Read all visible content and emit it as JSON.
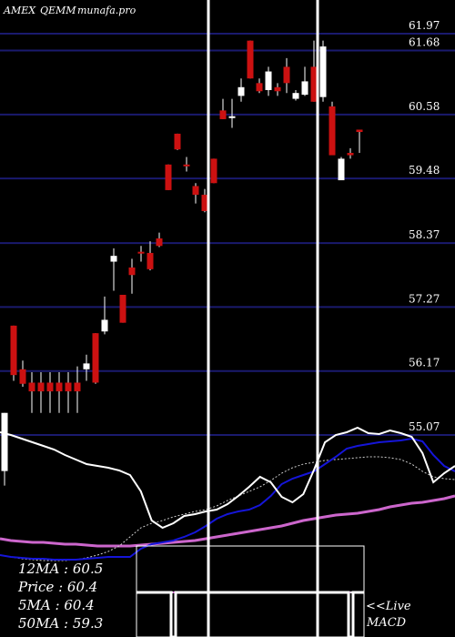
{
  "header": {
    "exchange": "AMEX",
    "symbol": "QEMM",
    "site": "munafa.pro"
  },
  "colors": {
    "background": "#000000",
    "grid": "#1a1a6e",
    "up_candle": "#ffffff",
    "down_candle": "#cc1111",
    "price_line": "#ffffff",
    "ma_fast": "#1515d8",
    "ma_slow": "#cc66cc",
    "ma_dotted": "#cccccc",
    "marker": "#ffffff"
  },
  "chart_data": {
    "type": "candlestick",
    "yticks": [
      61.97,
      61.68,
      60.58,
      59.48,
      58.37,
      57.27,
      56.17,
      55.07
    ],
    "candles": [
      {
        "o": 54.45,
        "h": 55.45,
        "l": 54.2,
        "c": 55.45
      },
      {
        "o": 56.95,
        "h": 56.95,
        "l": 56.0,
        "c": 56.1
      },
      {
        "o": 56.2,
        "h": 56.35,
        "l": 55.9,
        "c": 55.95
      },
      {
        "o": 55.97,
        "h": 56.15,
        "l": 55.45,
        "c": 55.82
      },
      {
        "o": 55.97,
        "h": 56.15,
        "l": 55.45,
        "c": 55.82
      },
      {
        "o": 55.97,
        "h": 56.15,
        "l": 55.45,
        "c": 55.82
      },
      {
        "o": 55.97,
        "h": 56.15,
        "l": 55.45,
        "c": 55.82
      },
      {
        "o": 55.97,
        "h": 56.15,
        "l": 55.45,
        "c": 55.82
      },
      {
        "o": 55.97,
        "h": 56.25,
        "l": 55.45,
        "c": 55.82
      },
      {
        "o": 56.2,
        "h": 56.45,
        "l": 56.0,
        "c": 56.3
      },
      {
        "o": 56.82,
        "h": 56.82,
        "l": 55.95,
        "c": 55.97
      },
      {
        "o": 56.85,
        "h": 57.45,
        "l": 56.8,
        "c": 57.05
      },
      {
        "o": 58.05,
        "h": 58.28,
        "l": 57.55,
        "c": 58.15
      },
      {
        "o": 57.48,
        "h": 57.48,
        "l": 57.0,
        "c": 57.0
      },
      {
        "o": 57.95,
        "h": 58.1,
        "l": 57.5,
        "c": 57.82
      },
      {
        "o": 58.22,
        "h": 58.32,
        "l": 58.05,
        "c": 58.2
      },
      {
        "o": 58.2,
        "h": 58.4,
        "l": 57.9,
        "c": 57.92
      },
      {
        "o": 58.45,
        "h": 58.55,
        "l": 58.3,
        "c": 58.32
      },
      {
        "o": 59.72,
        "h": 59.72,
        "l": 59.28,
        "c": 59.28
      },
      {
        "o": 60.25,
        "h": 60.25,
        "l": 59.97,
        "c": 59.98
      },
      {
        "o": 59.72,
        "h": 59.85,
        "l": 59.6,
        "c": 59.7
      },
      {
        "o": 59.35,
        "h": 59.4,
        "l": 59.05,
        "c": 59.2
      },
      {
        "o": 59.2,
        "h": 59.3,
        "l": 58.9,
        "c": 58.92
      },
      {
        "o": 59.82,
        "h": 59.82,
        "l": 59.4,
        "c": 59.4
      },
      {
        "o": 60.65,
        "h": 60.85,
        "l": 60.5,
        "c": 60.5
      },
      {
        "o": 60.55,
        "h": 60.85,
        "l": 60.35,
        "c": 60.55
      },
      {
        "o": 60.9,
        "h": 61.2,
        "l": 60.8,
        "c": 61.05
      },
      {
        "o": 61.85,
        "h": 61.85,
        "l": 61.2,
        "c": 61.2
      },
      {
        "o": 61.12,
        "h": 61.2,
        "l": 60.95,
        "c": 60.98
      },
      {
        "o": 61.0,
        "h": 61.4,
        "l": 60.9,
        "c": 61.32
      },
      {
        "o": 61.05,
        "h": 61.12,
        "l": 60.9,
        "c": 60.98
      },
      {
        "o": 61.4,
        "h": 61.55,
        "l": 60.95,
        "c": 61.12
      },
      {
        "o": 60.85,
        "h": 61.0,
        "l": 60.82,
        "c": 60.95
      },
      {
        "o": 60.92,
        "h": 61.4,
        "l": 60.9,
        "c": 61.15
      },
      {
        "o": 61.4,
        "h": 61.85,
        "l": 60.8,
        "c": 60.8
      },
      {
        "o": 60.88,
        "h": 61.85,
        "l": 60.8,
        "c": 61.75
      },
      {
        "o": 60.72,
        "h": 60.8,
        "l": 59.9,
        "c": 59.88
      },
      {
        "o": 59.45,
        "h": 59.85,
        "l": 59.45,
        "c": 59.82
      },
      {
        "o": 59.92,
        "h": 60.0,
        "l": 59.82,
        "c": 59.88
      },
      {
        "o": 60.32,
        "h": 60.32,
        "l": 59.92,
        "c": 60.28
      }
    ]
  },
  "overlay": {
    "price_line": [
      475,
      478,
      482,
      486,
      490,
      494,
      500,
      505,
      510,
      512,
      514,
      517,
      522,
      540,
      572,
      580,
      575,
      567,
      565,
      562,
      560,
      554,
      545,
      535,
      524,
      530,
      546,
      552,
      543,
      516,
      486,
      478,
      475,
      470,
      476,
      477,
      473,
      476,
      480,
      498,
      530,
      520,
      512
    ],
    "ma_fast": [
      610,
      612,
      613,
      614,
      614,
      615,
      615,
      615,
      614,
      613,
      612,
      612,
      612,
      603,
      598,
      596,
      594,
      590,
      585,
      578,
      570,
      565,
      562,
      560,
      555,
      545,
      532,
      526,
      522,
      518,
      510,
      502,
      493,
      490,
      488,
      486,
      485,
      484,
      482,
      485,
      500,
      512,
      518
    ],
    "ma_slow": [
      592,
      594,
      595,
      596,
      596,
      597,
      598,
      598,
      599,
      600,
      600,
      600,
      600,
      599,
      598,
      597,
      596,
      595,
      594,
      592,
      590,
      588,
      586,
      584,
      582,
      580,
      578,
      575,
      572,
      570,
      568,
      566,
      565,
      564,
      562,
      560,
      557,
      555,
      553,
      552,
      550,
      548,
      545
    ],
    "ma_dotted": [
      610,
      612,
      614,
      615,
      616,
      616,
      616,
      615,
      613,
      610,
      606,
      600,
      590,
      580,
      575,
      572,
      568,
      565,
      562,
      560,
      556,
      550,
      545,
      540,
      535,
      528,
      520,
      514,
      510,
      508,
      506,
      505,
      504,
      503,
      502,
      502,
      503,
      505,
      510,
      518,
      524,
      526,
      527
    ]
  },
  "indicators": {
    "ma12": "12MA : 60.5",
    "price": "Price  : 60.4",
    "ma5": "5MA : 60.4",
    "ma50": "50MA : 59.3"
  },
  "macd": {
    "line1": "<<Live",
    "line2": "MACD"
  }
}
